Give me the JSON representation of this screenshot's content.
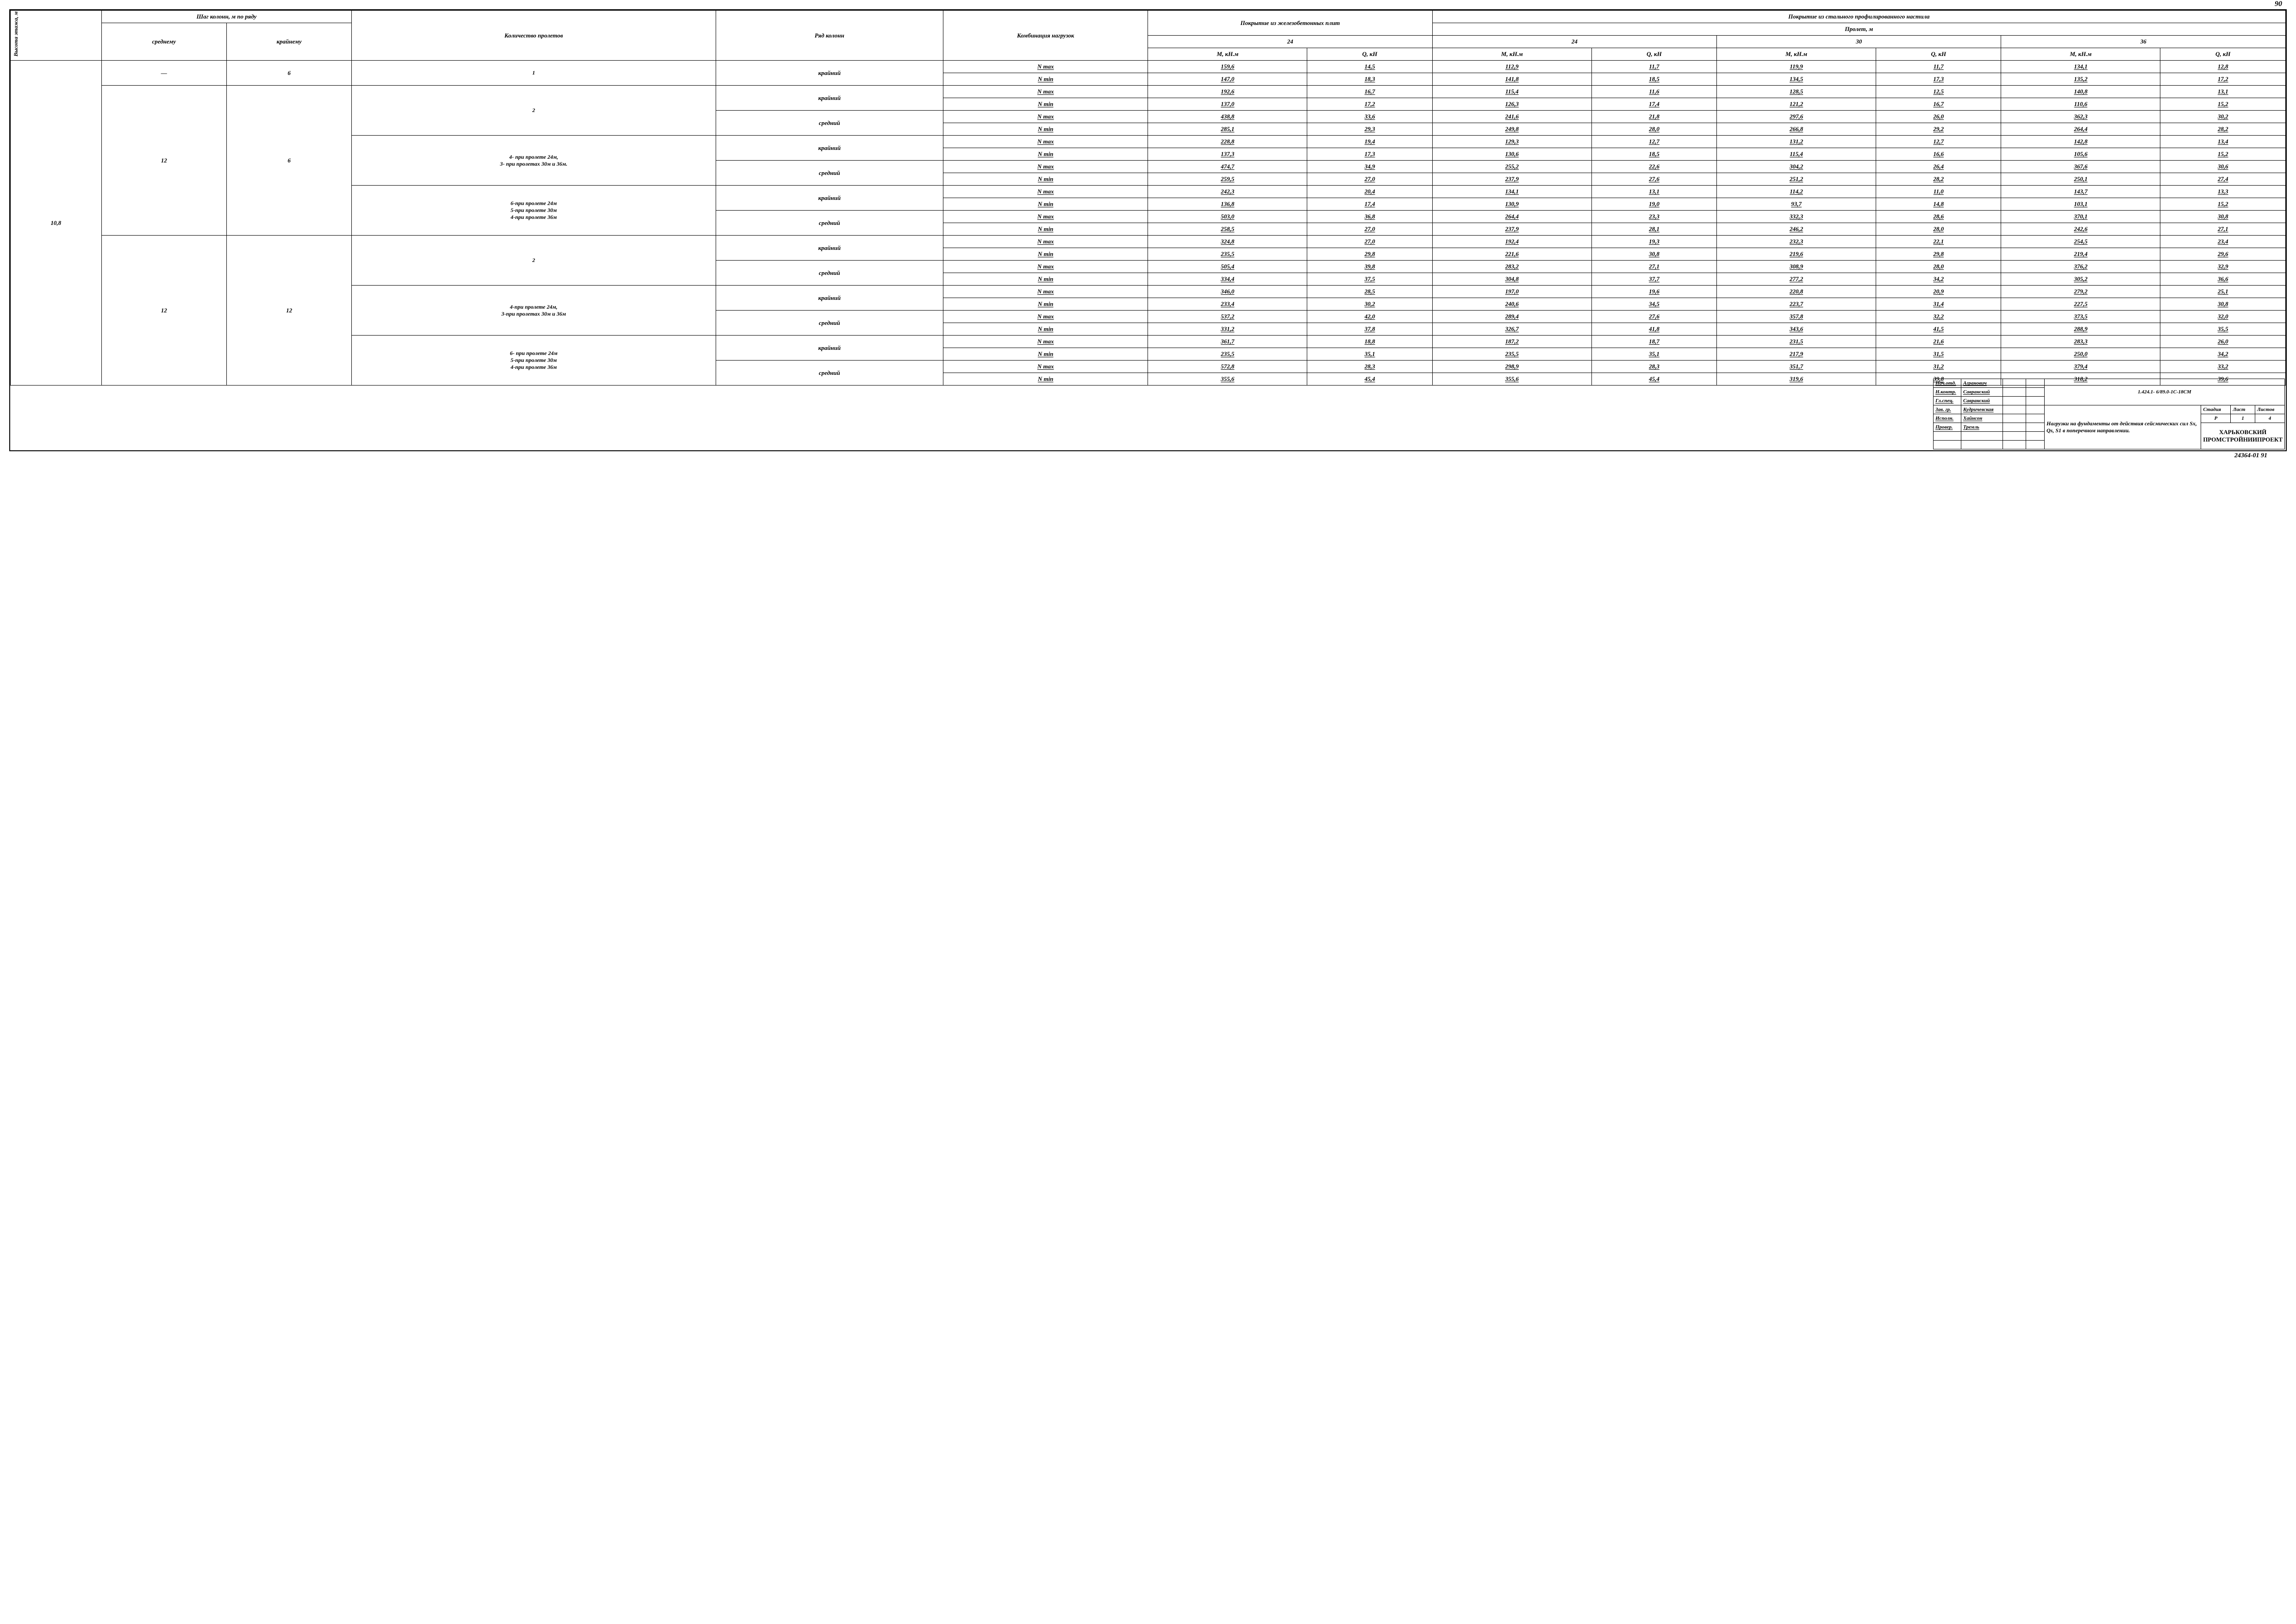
{
  "page_number_top": "90",
  "footer_code": "24364-01   91",
  "headers": {
    "h_vysota": "Высота этажа, м",
    "h_shag": "Шаг колонн, м по ряду",
    "h_sred": "среднему",
    "h_krain": "крайнему",
    "h_kol": "Количество пролетов",
    "h_ryad": "Ряд колонн",
    "h_komb": "Комбинация нагрузок",
    "h_cover_zhb": "Покрытие из железо­бетонных плит",
    "h_cover_steel": "Покрытие из стального профилированного настила",
    "h_prolet": "Пролет,  м",
    "h_24": "24",
    "h_30": "30",
    "h_36": "36",
    "h_M": "М, кН.м",
    "h_Q": "Q, кН"
  },
  "row_labels": {
    "krain": "крайний",
    "sred": "средний",
    "nmax": "N max",
    "nmin": "N min"
  },
  "floor_height": "10,8",
  "dash": "—",
  "groups": [
    {
      "step_mid": "—",
      "step_edge": "6",
      "span_count": "1",
      "blocks": [
        {
          "ryad": "крайний",
          "rows": [
            {
              "comb": "N max",
              "v": [
                "159,6",
                "14,5",
                "112,9",
                "11,7",
                "119,9",
                "11,7",
                "134,1",
                "12,8"
              ]
            },
            {
              "comb": "N min",
              "v": [
                "147,0",
                "18,3",
                "141,8",
                "18,5",
                "134,5",
                "17,3",
                "135,2",
                "17,2"
              ]
            }
          ]
        }
      ]
    },
    {
      "step_mid": "12",
      "step_edge": "6",
      "span_groups": [
        {
          "span_count": "2",
          "blocks": [
            {
              "ryad": "крайний",
              "rows": [
                {
                  "comb": "N max",
                  "v": [
                    "192,6",
                    "16,7",
                    "115,4",
                    "11,6",
                    "128,5",
                    "12,5",
                    "140,8",
                    "13,1"
                  ]
                },
                {
                  "comb": "N min",
                  "v": [
                    "137,0",
                    "17,2",
                    "126,3",
                    "17,4",
                    "121,2",
                    "16,7",
                    "110,6",
                    "15,2"
                  ]
                }
              ]
            },
            {
              "ryad": "средний",
              "rows": [
                {
                  "comb": "N max",
                  "v": [
                    "438,8",
                    "33,6",
                    "241,6",
                    "21,8",
                    "297,6",
                    "26,0",
                    "362,3",
                    "30,2"
                  ]
                },
                {
                  "comb": "N min",
                  "v": [
                    "285,1",
                    "29,3",
                    "249,8",
                    "28,0",
                    "266,8",
                    "29,2",
                    "264,4",
                    "28,2"
                  ]
                }
              ]
            }
          ]
        },
        {
          "span_count": "4- при пролете 24м,\n3- при пролетах 30м и 36м.",
          "blocks": [
            {
              "ryad": "крайний",
              "rows": [
                {
                  "comb": "N max",
                  "v": [
                    "228,8",
                    "19,4",
                    "129,3",
                    "12,7",
                    "131,2",
                    "12,7",
                    "142,8",
                    "13,4"
                  ]
                },
                {
                  "comb": "N min",
                  "v": [
                    "137,3",
                    "17,3",
                    "130,6",
                    "18,5",
                    "115,4",
                    "16,6",
                    "105,6",
                    "15,2"
                  ]
                }
              ]
            },
            {
              "ryad": "средний",
              "rows": [
                {
                  "comb": "N max",
                  "v": [
                    "474,7",
                    "34,9",
                    "255,2",
                    "22,6",
                    "304,2",
                    "26,4",
                    "367,6",
                    "30,6"
                  ]
                },
                {
                  "comb": "N min",
                  "v": [
                    "259,5",
                    "27,0",
                    "237,9",
                    "27,6",
                    "251,2",
                    "28,2",
                    "250,1",
                    "27,4"
                  ]
                }
              ]
            }
          ]
        },
        {
          "span_count": "6-при пролете 24м\n5-при пролете 30м\n4-при пролете 36м",
          "blocks": [
            {
              "ryad": "крайний",
              "rows": [
                {
                  "comb": "N max",
                  "v": [
                    "242,3",
                    "20,4",
                    "134,1",
                    "13,1",
                    "114,2",
                    "11,0",
                    "143,7",
                    "13,3"
                  ]
                },
                {
                  "comb": "N min",
                  "v": [
                    "136,8",
                    "17,4",
                    "130,9",
                    "19,0",
                    "93,7",
                    "14,8",
                    "103,1",
                    "15,2"
                  ]
                }
              ]
            },
            {
              "ryad": "средний",
              "rows": [
                {
                  "comb": "N max",
                  "v": [
                    "503,0",
                    "36,8",
                    "264,4",
                    "23,3",
                    "332,3",
                    "28,6",
                    "370,1",
                    "30,8"
                  ]
                },
                {
                  "comb": "N min",
                  "v": [
                    "258,5",
                    "27,0",
                    "237,9",
                    "28,1",
                    "246,2",
                    "28,0",
                    "242,6",
                    "27,1"
                  ]
                }
              ]
            }
          ]
        }
      ]
    },
    {
      "step_mid": "12",
      "step_edge": "12",
      "span_groups": [
        {
          "span_count": "2",
          "blocks": [
            {
              "ryad": "крайний",
              "rows": [
                {
                  "comb": "N max",
                  "v": [
                    "324,8",
                    "27,0",
                    "192,4",
                    "19,3",
                    "232,3",
                    "22,1",
                    "254,5",
                    "23,4"
                  ]
                },
                {
                  "comb": "N min",
                  "v": [
                    "235,5",
                    "29,8",
                    "221,6",
                    "30,8",
                    "219,6",
                    "29,8",
                    "219,4",
                    "29,6"
                  ]
                }
              ]
            },
            {
              "ryad": "средний",
              "rows": [
                {
                  "comb": "N max",
                  "v": [
                    "505,4",
                    "39,8",
                    "283,2",
                    "27,1",
                    "308,9",
                    "28,0",
                    "376,2",
                    "32,9"
                  ]
                },
                {
                  "comb": "N min",
                  "v": [
                    "334,4",
                    "37,5",
                    "304,8",
                    "37,7",
                    "277,2",
                    "34,2",
                    "305,2",
                    "36,6"
                  ]
                }
              ]
            }
          ]
        },
        {
          "span_count": "4-при пролете 24м,\n3-при пролетах 30м и 36м",
          "blocks": [
            {
              "ryad": "крайний",
              "rows": [
                {
                  "comb": "N max",
                  "v": [
                    "346,0",
                    "28,5",
                    "197,0",
                    "19,6",
                    "220,8",
                    "20,9",
                    "279,2",
                    "25,1"
                  ]
                },
                {
                  "comb": "N min",
                  "v": [
                    "233,4",
                    "30,2",
                    "240,6",
                    "34,5",
                    "223,7",
                    "31,4",
                    "227,5",
                    "30,8"
                  ]
                }
              ]
            },
            {
              "ryad": "средний",
              "rows": [
                {
                  "comb": "N max",
                  "v": [
                    "537,2",
                    "42,0",
                    "289,4",
                    "27,6",
                    "357,8",
                    "32,2",
                    "373,5",
                    "32,0"
                  ]
                },
                {
                  "comb": "N min",
                  "v": [
                    "331,2",
                    "37,8",
                    "326,7",
                    "41,8",
                    "343,6",
                    "41,5",
                    "288,9",
                    "35,5"
                  ]
                }
              ]
            }
          ]
        },
        {
          "span_count": "6- при пролете 24м\n5-при пролете  30м\n4-при пролете 36м",
          "blocks": [
            {
              "ryad": "крайний",
              "rows": [
                {
                  "comb": "N max",
                  "v": [
                    "361,7",
                    "18,8",
                    "187,2",
                    "18,7",
                    "231,5",
                    "21,6",
                    "283,3",
                    "26,0"
                  ]
                },
                {
                  "comb": "N min",
                  "v": [
                    "235,5",
                    "35,1",
                    "235,5",
                    "35,1",
                    "217,9",
                    "31,5",
                    "250,0",
                    "34,2"
                  ]
                }
              ]
            },
            {
              "ryad": "средний",
              "rows": [
                {
                  "comb": "N max",
                  "v": [
                    "572,8",
                    "28,3",
                    "298,9",
                    "28,3",
                    "351,7",
                    "31,2",
                    "379,4",
                    "33,2"
                  ]
                },
                {
                  "comb": "N min",
                  "v": [
                    "355,6",
                    "45,4",
                    "355,6",
                    "45,4",
                    "319,6",
                    "39,8",
                    "318,2",
                    "39,6"
                  ]
                }
              ]
            }
          ]
        }
      ]
    }
  ],
  "stamp": {
    "doc_code": "1.424.1- 6/89.0-1С-18СМ",
    "desc": "Нагрузки на фундаменты от действия сейсмических сил Sх, Qs, S1 в поперечном направлении.",
    "org": "ХАРЬКОВСКИЙ ПРОМСТРОЙНИИПРОЕКТ",
    "stage_h": "Стадия",
    "sheet_h": "Лист",
    "sheets_h": "Листов",
    "stage": "Р",
    "sheet": "1",
    "sheets": "4",
    "roles": [
      {
        "r": "Нач.отд.",
        "n": "Агранович"
      },
      {
        "r": "Н.контр.",
        "n": "Савранский"
      },
      {
        "r": "Гл.спец.",
        "n": "Савранский"
      },
      {
        "r": "Зав. гр.",
        "n": "Кудричевская"
      },
      {
        "r": "Исполн.",
        "n": "Хайнсон"
      },
      {
        "r": "Провер.",
        "n": "Тремль"
      },
      {
        "r": "",
        "n": ""
      },
      {
        "r": "",
        "n": ""
      }
    ]
  }
}
